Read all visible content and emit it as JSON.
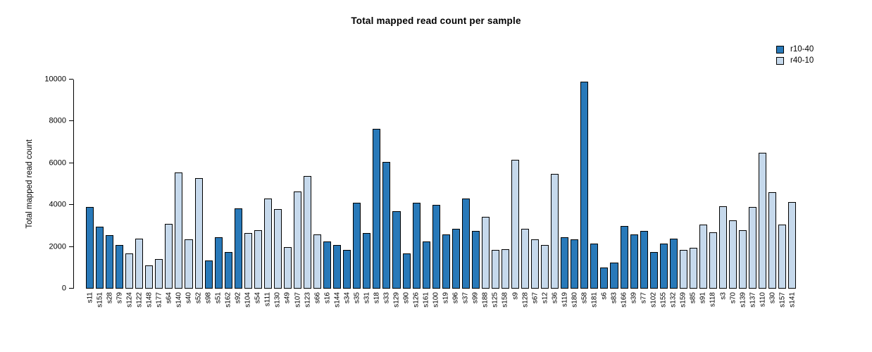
{
  "chart_data": {
    "type": "bar",
    "title": "Total mapped read count per sample",
    "xlabel": "",
    "ylabel": "Total mapped read count",
    "ylim": [
      0,
      10000
    ],
    "yticks": [
      0,
      2000,
      4000,
      6000,
      8000,
      10000
    ],
    "grid": false,
    "legend_position": "top-right",
    "series": [
      {
        "name": "r10-40",
        "color": "#2879B9"
      },
      {
        "name": "r40-10",
        "color": "#C6D9EC"
      }
    ],
    "samples": [
      {
        "label": "s11",
        "value": 3900,
        "series": "r10-40"
      },
      {
        "label": "s151",
        "value": 2950,
        "series": "r10-40"
      },
      {
        "label": "s28",
        "value": 2550,
        "series": "r10-40"
      },
      {
        "label": "s79",
        "value": 2100,
        "series": "r10-40"
      },
      {
        "label": "s124",
        "value": 1700,
        "series": "r40-10"
      },
      {
        "label": "s122",
        "value": 2400,
        "series": "r40-10"
      },
      {
        "label": "s148",
        "value": 1100,
        "series": "r40-10"
      },
      {
        "label": "s177",
        "value": 1400,
        "series": "r40-10"
      },
      {
        "label": "s64",
        "value": 3100,
        "series": "r40-10"
      },
      {
        "label": "s140",
        "value": 5550,
        "series": "r40-10"
      },
      {
        "label": "s40",
        "value": 2350,
        "series": "r40-10"
      },
      {
        "label": "s52",
        "value": 5300,
        "series": "r40-10"
      },
      {
        "label": "s98",
        "value": 1350,
        "series": "r10-40"
      },
      {
        "label": "s51",
        "value": 2450,
        "series": "r10-40"
      },
      {
        "label": "s162",
        "value": 1750,
        "series": "r10-40"
      },
      {
        "label": "s92",
        "value": 3850,
        "series": "r10-40"
      },
      {
        "label": "s104",
        "value": 2650,
        "series": "r40-10"
      },
      {
        "label": "s54",
        "value": 2800,
        "series": "r40-10"
      },
      {
        "label": "s111",
        "value": 4300,
        "series": "r40-10"
      },
      {
        "label": "s130",
        "value": 3800,
        "series": "r40-10"
      },
      {
        "label": "s49",
        "value": 2000,
        "series": "r40-10"
      },
      {
        "label": "s107",
        "value": 4650,
        "series": "r40-10"
      },
      {
        "label": "s123",
        "value": 5400,
        "series": "r40-10"
      },
      {
        "label": "s66",
        "value": 2600,
        "series": "r40-10"
      },
      {
        "label": "s16",
        "value": 2250,
        "series": "r10-40"
      },
      {
        "label": "s144",
        "value": 2100,
        "series": "r10-40"
      },
      {
        "label": "s34",
        "value": 1850,
        "series": "r10-40"
      },
      {
        "label": "s35",
        "value": 4100,
        "series": "r10-40"
      },
      {
        "label": "s31",
        "value": 2650,
        "series": "r10-40"
      },
      {
        "label": "s18",
        "value": 7650,
        "series": "r10-40"
      },
      {
        "label": "s33",
        "value": 6050,
        "series": "r10-40"
      },
      {
        "label": "s129",
        "value": 3700,
        "series": "r10-40"
      },
      {
        "label": "s90",
        "value": 1700,
        "series": "r10-40"
      },
      {
        "label": "s126",
        "value": 4100,
        "series": "r10-40"
      },
      {
        "label": "s161",
        "value": 2250,
        "series": "r10-40"
      },
      {
        "label": "s100",
        "value": 4000,
        "series": "r10-40"
      },
      {
        "label": "s19",
        "value": 2600,
        "series": "r10-40"
      },
      {
        "label": "s96",
        "value": 2850,
        "series": "r10-40"
      },
      {
        "label": "s37",
        "value": 4300,
        "series": "r10-40"
      },
      {
        "label": "s99",
        "value": 2750,
        "series": "r10-40"
      },
      {
        "label": "s188",
        "value": 3450,
        "series": "r40-10"
      },
      {
        "label": "s125",
        "value": 1850,
        "series": "r40-10"
      },
      {
        "label": "s158",
        "value": 1900,
        "series": "r40-10"
      },
      {
        "label": "s9",
        "value": 6150,
        "series": "r40-10"
      },
      {
        "label": "s128",
        "value": 2850,
        "series": "r40-10"
      },
      {
        "label": "s67",
        "value": 2350,
        "series": "r40-10"
      },
      {
        "label": "s12",
        "value": 2100,
        "series": "r40-10"
      },
      {
        "label": "s36",
        "value": 5500,
        "series": "r40-10"
      },
      {
        "label": "s119",
        "value": 2450,
        "series": "r10-40"
      },
      {
        "label": "s180",
        "value": 2350,
        "series": "r10-40"
      },
      {
        "label": "s58",
        "value": 9900,
        "series": "r10-40"
      },
      {
        "label": "s181",
        "value": 2150,
        "series": "r10-40"
      },
      {
        "label": "s6",
        "value": 1000,
        "series": "r10-40"
      },
      {
        "label": "s83",
        "value": 1250,
        "series": "r10-40"
      },
      {
        "label": "s166",
        "value": 3000,
        "series": "r10-40"
      },
      {
        "label": "s39",
        "value": 2600,
        "series": "r10-40"
      },
      {
        "label": "s77",
        "value": 2750,
        "series": "r10-40"
      },
      {
        "label": "s102",
        "value": 1750,
        "series": "r10-40"
      },
      {
        "label": "s155",
        "value": 2150,
        "series": "r10-40"
      },
      {
        "label": "s132",
        "value": 2400,
        "series": "r10-40"
      },
      {
        "label": "s159",
        "value": 1850,
        "series": "r40-10"
      },
      {
        "label": "s85",
        "value": 1950,
        "series": "r40-10"
      },
      {
        "label": "s91",
        "value": 3050,
        "series": "r40-10"
      },
      {
        "label": "s118",
        "value": 2700,
        "series": "r40-10"
      },
      {
        "label": "s3",
        "value": 3950,
        "series": "r40-10"
      },
      {
        "label": "s70",
        "value": 3250,
        "series": "r40-10"
      },
      {
        "label": "s139",
        "value": 2800,
        "series": "r40-10"
      },
      {
        "label": "s137",
        "value": 3900,
        "series": "r40-10"
      },
      {
        "label": "s110",
        "value": 6500,
        "series": "r40-10"
      },
      {
        "label": "s30",
        "value": 4600,
        "series": "r40-10"
      },
      {
        "label": "s157",
        "value": 3050,
        "series": "r40-10"
      },
      {
        "label": "s141",
        "value": 4150,
        "series": "r40-10"
      }
    ]
  }
}
